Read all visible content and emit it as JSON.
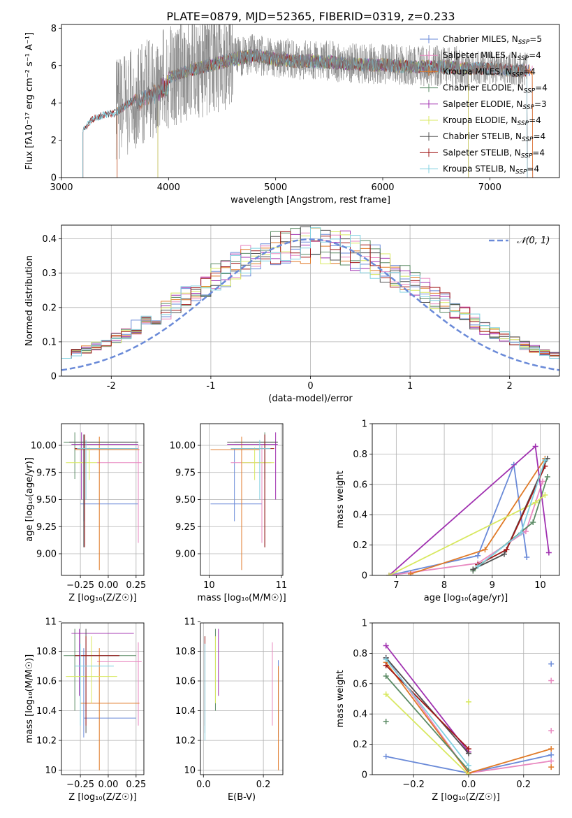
{
  "title": "PLATE=0879, MJD=52365, FIBERID=0319, z=0.233",
  "colors": {
    "Chabrier MILES": "#6a8ad8",
    "Salpeter MILES": "#e888c0",
    "Kroupa MILES": "#e07a28",
    "Chabrier ELODIE": "#5a8a64",
    "Salpeter ELODIE": "#a030b0",
    "Kroupa ELODIE": "#d8e860",
    "Chabrier STELIB": "#505050",
    "Salpeter STELIB": "#a01818",
    "Kroupa STELIB": "#80d0e0",
    "gauss": "#6a8ad8"
  },
  "chart_data": [
    {
      "type": "line",
      "name": "spectrum",
      "xlabel": "wavelength [Angstrom, rest frame]",
      "ylabel": "Flux [fλ10⁻¹⁷ erg cm⁻² s⁻¹ A⁻¹]",
      "xlim": [
        3000,
        7650
      ],
      "ylim": [
        0,
        8.2
      ],
      "xticks": [
        3000,
        4000,
        5000,
        6000,
        7000
      ],
      "yticks": [
        0,
        2,
        4,
        6,
        8
      ],
      "legend_position": "top-right",
      "legend": [
        "Chabrier MILES, N_SSP=5",
        "Salpeter MILES, N_SSP=4",
        "Kroupa MILES, N_SSP=4",
        "Chabrier ELODIE, N_SSP=4",
        "Salpeter ELODIE, N_SSP=3",
        "Kroupa ELODIE, N_SSP=4",
        "Chabrier STELIB, N_SSP=4",
        "Salpeter STELIB, N_SSP=4",
        "Kroupa STELIB, N_SSP=4"
      ],
      "envelope": {
        "x": [
          3200,
          3300,
          3400,
          3500,
          3600,
          3700,
          3800,
          3900,
          4000,
          4200,
          4400,
          4600,
          4800,
          5000,
          5200,
          5400,
          5600,
          5800,
          6000,
          6200,
          6400,
          6600,
          6800,
          7000,
          7200,
          7350
        ],
        "y": [
          2.6,
          3.2,
          3.4,
          3.5,
          3.9,
          4.3,
          4.7,
          5.0,
          5.4,
          5.8,
          6.1,
          6.4,
          6.6,
          6.4,
          6.3,
          6.3,
          6.2,
          6.1,
          6.1,
          6.0,
          6.0,
          6.0,
          5.9,
          5.9,
          5.8,
          5.8
        ]
      },
      "model_ranges": {
        "MILES": [
          3520,
          7400
        ],
        "ELODIE": [
          3900,
          6800
        ],
        "STELIB": [
          3200,
          7350
        ]
      },
      "data_range": [
        3510,
        7350
      ]
    },
    {
      "type": "histogram",
      "name": "residuals",
      "xlabel": "(data-model)/error",
      "ylabel": "Normed distribution",
      "xlim": [
        -2.5,
        2.5
      ],
      "ylim": [
        0,
        0.44
      ],
      "xticks": [
        -2,
        -1,
        0,
        1,
        2
      ],
      "yticks": [
        0.0,
        0.1,
        0.2,
        0.3,
        0.4
      ],
      "grid": true,
      "gauss_label": "𝒩(0, 1)",
      "bin_width": 0.1
    },
    {
      "type": "errorbar",
      "name": "age_vs_Z",
      "xlabel": "Z [log₁₀(Z/Z☉)]",
      "ylabel": "age  [log₁₀(age/yr)]",
      "xlim": [
        -0.42,
        0.32
      ],
      "ylim": [
        8.8,
        10.2
      ],
      "xticks": [
        -0.25,
        0.0,
        0.25
      ],
      "xticklabels": [
        "−0.25",
        "0.00",
        "0.25"
      ],
      "yticks": [
        9.0,
        9.25,
        9.5,
        9.75,
        10.0
      ],
      "yticklabels": [
        "9.00",
        "9.25",
        "9.50",
        "9.75",
        "10.00"
      ],
      "grid": true,
      "points": [
        {
          "series": "Chabrier MILES",
          "x": -0.22,
          "xlo": -0.25,
          "xhi": 0.27,
          "y": 9.46,
          "ylo": 9.3,
          "yhi": 9.97
        },
        {
          "series": "Salpeter MILES",
          "x": 0.27,
          "xlo": -0.1,
          "xhi": 0.3,
          "y": 9.84,
          "ylo": 9.1,
          "yhi": 10.0
        },
        {
          "series": "Kroupa MILES",
          "x": -0.08,
          "xlo": -0.3,
          "xhi": 0.28,
          "y": 9.96,
          "ylo": 8.85,
          "yhi": 10.08
        },
        {
          "series": "Chabrier ELODIE",
          "x": -0.3,
          "xlo": -0.4,
          "xhi": 0.27,
          "y": 10.03,
          "ylo": 9.69,
          "yhi": 10.12
        },
        {
          "series": "Salpeter ELODIE",
          "x": -0.24,
          "xlo": -0.33,
          "xhi": 0.27,
          "y": 10.01,
          "ylo": 9.5,
          "yhi": 10.12
        },
        {
          "series": "Kroupa ELODIE",
          "x": -0.17,
          "xlo": -0.38,
          "xhi": -0.1,
          "y": 9.84,
          "ylo": 9.68,
          "yhi": 9.98
        },
        {
          "series": "Chabrier STELIB",
          "x": -0.22,
          "xlo": -0.35,
          "xhi": 0.27,
          "y": 10.03,
          "ylo": 9.06,
          "yhi": 10.1
        },
        {
          "series": "Salpeter STELIB",
          "x": -0.21,
          "xlo": -0.3,
          "xhi": 0.27,
          "y": 9.97,
          "ylo": 9.06,
          "yhi": 10.1
        },
        {
          "series": "Kroupa STELIB",
          "x": -0.2,
          "xlo": -0.28,
          "xhi": 0.27,
          "y": 9.97,
          "ylo": 9.5,
          "yhi": 10.05
        }
      ]
    },
    {
      "type": "errorbar",
      "name": "age_vs_mass",
      "xlabel": "mass [log₁₀(M/M☉)]",
      "ylabel": "",
      "xlim": [
        9.88,
        11.02
      ],
      "ylim": [
        8.8,
        10.2
      ],
      "xticks": [
        10,
        11
      ],
      "yticks": [
        9.0,
        9.25,
        9.5,
        9.75,
        10.0
      ],
      "yticklabels": [
        "9.00",
        "9.25",
        "9.50",
        "9.75",
        "10.00"
      ],
      "grid": true,
      "points": [
        {
          "series": "Chabrier MILES",
          "x": 10.35,
          "xlo": 10.02,
          "xhi": 10.73,
          "y": 9.46,
          "ylo": 9.3,
          "yhi": 9.97
        },
        {
          "series": "Salpeter MILES",
          "x": 10.73,
          "xlo": 10.3,
          "xhi": 10.86,
          "y": 9.84,
          "ylo": 9.1,
          "yhi": 10.0
        },
        {
          "series": "Kroupa MILES",
          "x": 10.45,
          "xlo": 10.02,
          "xhi": 10.7,
          "y": 9.96,
          "ylo": 8.85,
          "yhi": 10.08
        },
        {
          "series": "Chabrier ELODIE",
          "x": 10.77,
          "xlo": 10.35,
          "xhi": 10.95,
          "y": 10.03,
          "ylo": 9.69,
          "yhi": 10.12
        },
        {
          "series": "Salpeter ELODIE",
          "x": 10.92,
          "xlo": 10.25,
          "xhi": 10.95,
          "y": 10.01,
          "ylo": 9.5,
          "yhi": 10.12
        },
        {
          "series": "Kroupa ELODIE",
          "x": 10.63,
          "xlo": 10.45,
          "xhi": 10.9,
          "y": 9.84,
          "ylo": 9.68,
          "yhi": 9.98
        },
        {
          "series": "Chabrier STELIB",
          "x": 10.77,
          "xlo": 10.25,
          "xhi": 10.95,
          "y": 10.03,
          "ylo": 9.06,
          "yhi": 10.1
        },
        {
          "series": "Salpeter STELIB",
          "x": 10.77,
          "xlo": 10.3,
          "xhi": 10.9,
          "y": 9.97,
          "ylo": 9.06,
          "yhi": 10.1
        },
        {
          "series": "Kroupa STELIB",
          "x": 10.7,
          "xlo": 10.3,
          "xhi": 10.85,
          "y": 9.97,
          "ylo": 9.5,
          "yhi": 10.05
        }
      ]
    },
    {
      "type": "line",
      "name": "weight_vs_age",
      "xlabel": "age  [log₁₀(age/yr)]",
      "ylabel": "mass weight",
      "xlim": [
        6.5,
        10.4
      ],
      "ylim": [
        0,
        1
      ],
      "xticks": [
        7,
        8,
        9,
        10
      ],
      "yticks": [
        0.0,
        0.2,
        0.4,
        0.6,
        0.8,
        1.0
      ],
      "grid": true,
      "series": [
        {
          "name": "Chabrier MILES",
          "x": [
            6.85,
            8.7,
            9.45,
            9.72
          ],
          "y": [
            0.0,
            0.13,
            0.73,
            0.12
          ]
        },
        {
          "name": "Salpeter MILES",
          "x": [
            6.85,
            8.7,
            9.7,
            10.05
          ],
          "y": [
            0.0,
            0.08,
            0.29,
            0.62
          ]
        },
        {
          "name": "Kroupa MILES",
          "x": [
            7.3,
            8.85,
            10.1
          ],
          "y": [
            0.01,
            0.17,
            0.77
          ]
        },
        {
          "name": "Chabrier ELODIE",
          "x": [
            8.6,
            9.85,
            10.15
          ],
          "y": [
            0.03,
            0.35,
            0.65
          ]
        },
        {
          "name": "Salpeter ELODIE",
          "x": [
            6.85,
            9.9,
            10.18
          ],
          "y": [
            0.0,
            0.85,
            0.15
          ]
        },
        {
          "name": "Kroupa ELODIE",
          "x": [
            6.85,
            9.9,
            10.1
          ],
          "y": [
            0.0,
            0.48,
            0.53
          ]
        },
        {
          "name": "Chabrier STELIB",
          "x": [
            8.6,
            9.25,
            10.15
          ],
          "y": [
            0.04,
            0.14,
            0.77
          ]
        },
        {
          "name": "Salpeter STELIB",
          "x": [
            8.7,
            9.3,
            10.1
          ],
          "y": [
            0.07,
            0.17,
            0.72
          ]
        },
        {
          "name": "Kroupa STELIB",
          "x": [
            8.7,
            9.6,
            10.1
          ],
          "y": [
            0.06,
            0.28,
            0.76
          ]
        }
      ]
    },
    {
      "type": "errorbar",
      "name": "mass_vs_Z",
      "xlabel": "Z [log₁₀(Z/Z☉)]",
      "ylabel": "mass [log₁₀(M/M☉)]",
      "xlim": [
        -0.42,
        0.32
      ],
      "ylim": [
        9.97,
        10.99
      ],
      "xticks": [
        -0.25,
        0.0,
        0.25
      ],
      "xticklabels": [
        "−0.25",
        "0.00",
        "0.25"
      ],
      "yticks": [
        10.0,
        10.2,
        10.4,
        10.6,
        10.8,
        11.0
      ],
      "grid": true,
      "points": [
        {
          "series": "Chabrier MILES",
          "x": -0.22,
          "xlo": -0.22,
          "xhi": 0.25,
          "y": 10.35,
          "ylo": 10.22,
          "yhi": 10.82
        },
        {
          "series": "Salpeter MILES",
          "x": 0.27,
          "xlo": -0.1,
          "xhi": 0.3,
          "y": 10.73,
          "ylo": 10.3,
          "yhi": 10.86
        },
        {
          "series": "Kroupa MILES",
          "x": -0.08,
          "xlo": -0.25,
          "xhi": 0.28,
          "y": 10.45,
          "ylo": 10.0,
          "yhi": 10.82
        },
        {
          "series": "Chabrier ELODIE",
          "x": -0.3,
          "xlo": -0.4,
          "xhi": 0.25,
          "y": 10.77,
          "ylo": 10.4,
          "yhi": 10.95
        },
        {
          "series": "Salpeter ELODIE",
          "x": -0.26,
          "xlo": -0.33,
          "xhi": 0.23,
          "y": 10.92,
          "ylo": 10.5,
          "yhi": 10.95
        },
        {
          "series": "Kroupa ELODIE",
          "x": -0.15,
          "xlo": -0.38,
          "xhi": 0.08,
          "y": 10.63,
          "ylo": 10.45,
          "yhi": 10.9
        },
        {
          "series": "Chabrier STELIB",
          "x": -0.2,
          "xlo": -0.3,
          "xhi": 0.1,
          "y": 10.77,
          "ylo": 10.25,
          "yhi": 10.95
        },
        {
          "series": "Salpeter STELIB",
          "x": -0.2,
          "xlo": -0.3,
          "xhi": 0.1,
          "y": 10.77,
          "ylo": 10.3,
          "yhi": 10.9
        },
        {
          "series": "Kroupa STELIB",
          "x": -0.25,
          "xlo": -0.3,
          "xhi": 0.05,
          "y": 10.7,
          "ylo": 10.3,
          "yhi": 10.85
        }
      ]
    },
    {
      "type": "errorbar",
      "name": "mass_vs_ebv",
      "xlabel": "E(B-V)",
      "ylabel": "",
      "xlim": [
        -0.01,
        0.265
      ],
      "ylim": [
        9.97,
        10.99
      ],
      "xticks": [
        0.0,
        0.2
      ],
      "xticklabels": [
        "0.0",
        "0.2"
      ],
      "yticks": [
        10.0,
        10.2,
        10.4,
        10.6,
        10.8,
        11.0
      ],
      "grid": true,
      "points": [
        {
          "series": "Chabrier MILES",
          "x": 0.25,
          "y": 10.35,
          "ylo": 10.22,
          "yhi": 10.74
        },
        {
          "series": "Salpeter MILES",
          "x": 0.23,
          "y": 10.73,
          "ylo": 10.3,
          "yhi": 10.86
        },
        {
          "series": "Kroupa MILES",
          "x": 0.25,
          "y": 10.45,
          "ylo": 10.0,
          "yhi": 10.7
        },
        {
          "series": "Chabrier ELODIE",
          "x": 0.04,
          "y": 10.77,
          "ylo": 10.4,
          "yhi": 10.95
        },
        {
          "series": "Salpeter ELODIE",
          "x": 0.05,
          "y": 10.92,
          "ylo": 10.5,
          "yhi": 10.95
        },
        {
          "series": "Kroupa ELODIE",
          "x": 0.04,
          "y": 10.63,
          "ylo": 10.45,
          "yhi": 10.9
        },
        {
          "series": "Chabrier STELIB",
          "x": 0.005,
          "y": 10.77,
          "ylo": 10.25,
          "yhi": 10.9
        },
        {
          "series": "Salpeter STELIB",
          "x": 0.005,
          "y": 10.77,
          "ylo": 10.3,
          "yhi": 10.9
        },
        {
          "series": "Kroupa STELIB",
          "x": 0.005,
          "y": 10.7,
          "ylo": 10.2,
          "yhi": 10.85
        }
      ]
    },
    {
      "type": "line",
      "name": "weight_vs_Z",
      "xlabel": "Z [log₁₀(Z/Z☉)]",
      "ylabel": "mass weight",
      "xlim": [
        -0.35,
        0.33
      ],
      "ylim": [
        0,
        1
      ],
      "xticks": [
        -0.2,
        0.0,
        0.2
      ],
      "xticklabels": [
        "−0.2",
        "0.0",
        "0.2"
      ],
      "yticks": [
        0.0,
        0.2,
        0.4,
        0.6,
        0.8,
        1.0
      ],
      "grid": true,
      "series": [
        {
          "name": "Chabrier MILES",
          "x": [
            -0.3,
            0.0,
            0.3
          ],
          "y": [
            0.12,
            0.01,
            0.13
          ]
        },
        {
          "name": "Salpeter MILES",
          "x": [
            -0.3,
            0.0,
            0.3
          ],
          "y": [
            0.77,
            0.01,
            0.09
          ]
        },
        {
          "name": "Kroupa MILES",
          "x": [
            -0.3,
            0.0,
            0.3
          ],
          "y": [
            0.74,
            0.01,
            0.17
          ]
        },
        {
          "name": "Chabrier ELODIE",
          "x": [
            -0.3,
            0.0
          ],
          "y": [
            0.65,
            0.03
          ]
        },
        {
          "name": "Salpeter ELODIE",
          "x": [
            -0.3,
            0.0
          ],
          "y": [
            0.85,
            0.15
          ]
        },
        {
          "name": "Kroupa ELODIE",
          "x": [
            -0.3,
            0.0
          ],
          "y": [
            0.53,
            0.0
          ]
        },
        {
          "name": "Chabrier STELIB",
          "x": [
            -0.3,
            0.0
          ],
          "y": [
            0.77,
            0.14
          ]
        },
        {
          "name": "Salpeter STELIB",
          "x": [
            -0.3,
            0.0
          ],
          "y": [
            0.72,
            0.17
          ]
        },
        {
          "name": "Kroupa STELIB",
          "x": [
            -0.3,
            0.0
          ],
          "y": [
            0.76,
            0.06
          ]
        }
      ],
      "extra_markers": [
        {
          "series": "Chabrier MILES",
          "x": 0.3,
          "y": 0.73
        },
        {
          "series": "Salpeter MILES",
          "x": 0.3,
          "y": 0.62
        },
        {
          "series": "Salpeter MILES",
          "x": 0.3,
          "y": 0.29
        },
        {
          "series": "Kroupa MILES",
          "x": 0.3,
          "y": 0.05
        },
        {
          "series": "Kroupa ELODIE",
          "x": 0.0,
          "y": 0.48
        },
        {
          "series": "Chabrier ELODIE",
          "x": -0.3,
          "y": 0.35
        }
      ]
    }
  ]
}
